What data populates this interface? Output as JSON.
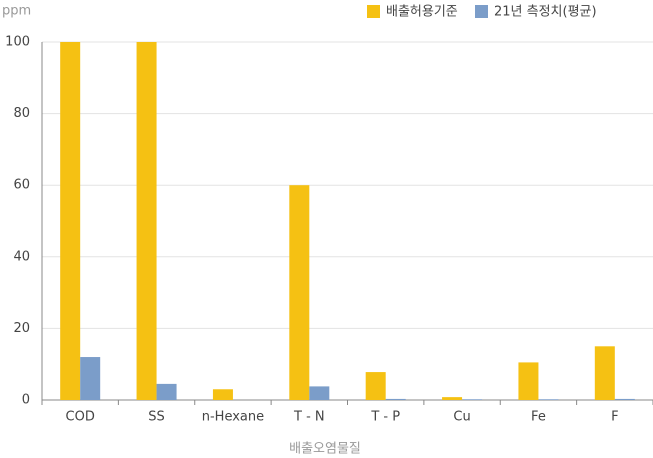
{
  "chart_data": {
    "type": "bar",
    "y_label": "ppm",
    "x_label": "배출오염물질",
    "categories": [
      "COD",
      "SS",
      "n-Hexane",
      "T - N",
      "T - P",
      "Cu",
      "Fe",
      "F"
    ],
    "series": [
      {
        "name": "배출허용기준",
        "color": "#f5c113",
        "values": [
          100,
          100,
          3,
          60,
          7.8,
          0.8,
          10.5,
          15
        ]
      },
      {
        "name": "21년 측정치(평균)",
        "color": "#7b9dc9",
        "values": [
          12,
          4.5,
          0,
          3.8,
          0.3,
          0.2,
          0.2,
          0.3
        ]
      }
    ],
    "ylim": [
      0,
      100
    ],
    "yticks": [
      0,
      20,
      40,
      60,
      80,
      100
    ],
    "grid": true,
    "legend": "top-right"
  }
}
